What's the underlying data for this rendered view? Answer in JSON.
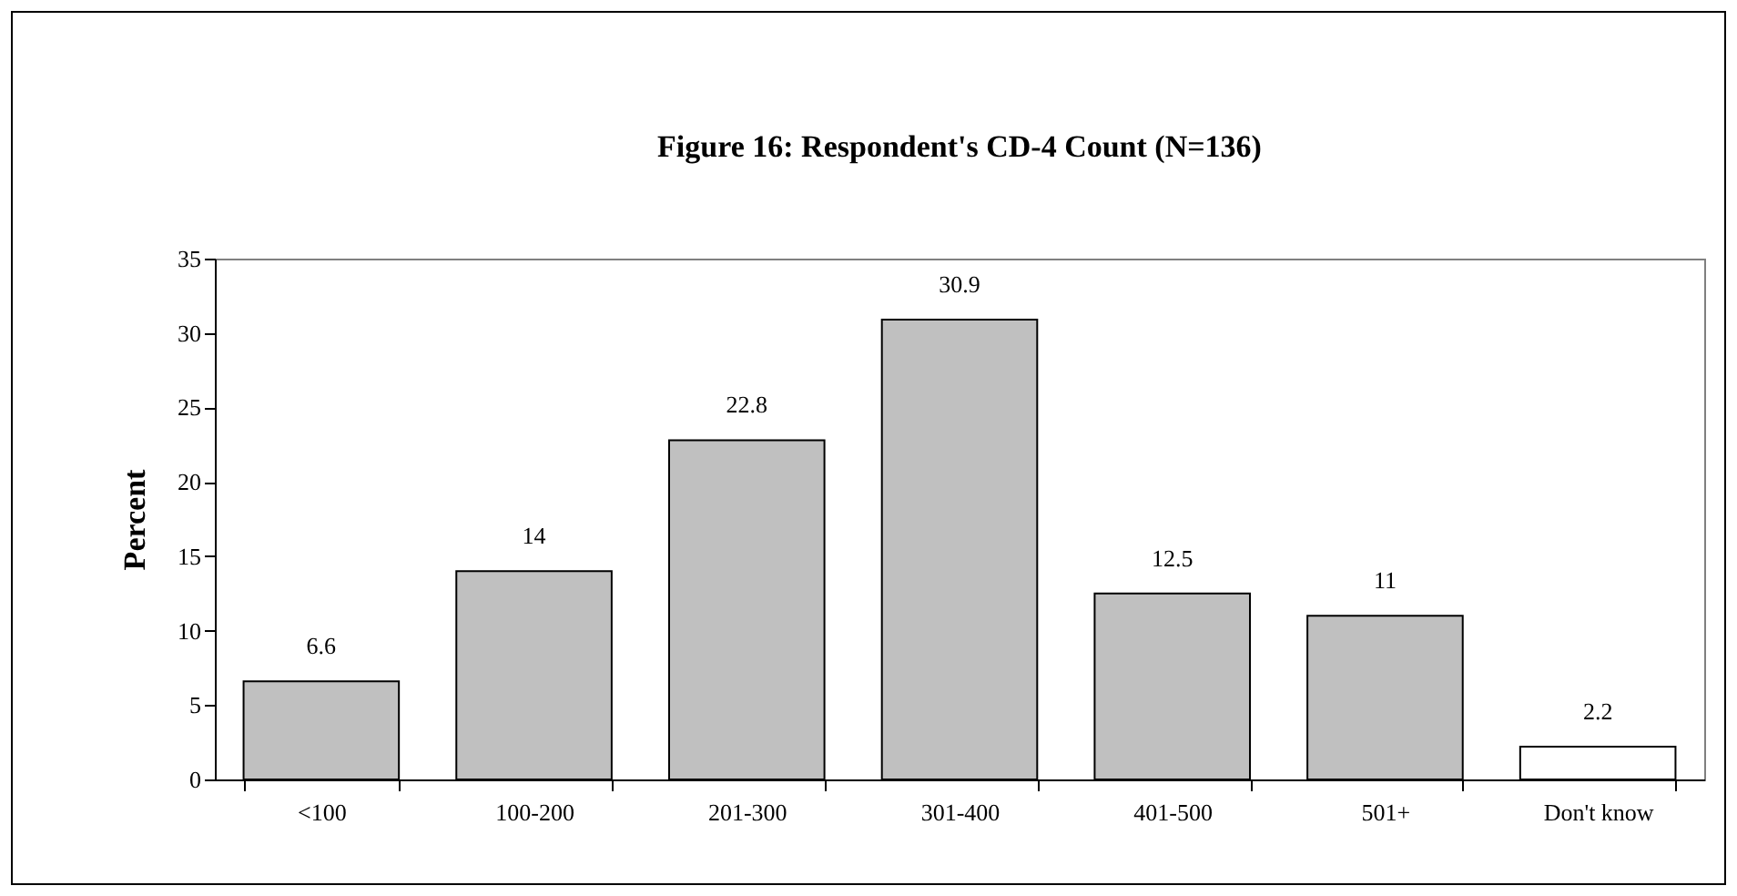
{
  "chart_data": {
    "type": "bar",
    "title": "Figure 16:  Respondent's CD-4 Count (N=136)",
    "ylabel": "Percent",
    "categories": [
      "<100",
      "100-200",
      "201-300",
      "301-400",
      "401-500",
      "501+",
      "Don't know"
    ],
    "values": [
      6.6,
      14,
      22.8,
      30.9,
      12.5,
      11,
      2.2
    ],
    "colors": [
      "#c0c0c0",
      "#c0c0c0",
      "#c0c0c0",
      "#c0c0c0",
      "#c0c0c0",
      "#c0c0c0",
      "#ffffff"
    ],
    "ylim": [
      0,
      35
    ],
    "yticks": [
      0,
      5,
      10,
      15,
      20,
      25,
      30,
      35
    ],
    "data_labels": true,
    "grid": false
  }
}
